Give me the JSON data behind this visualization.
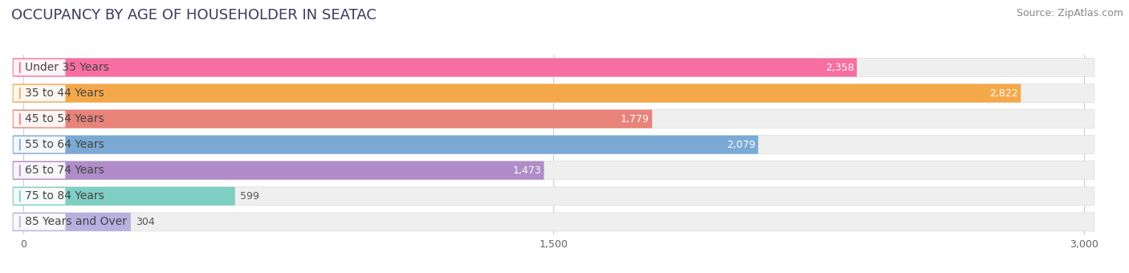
{
  "title": "OCCUPANCY BY AGE OF HOUSEHOLDER IN SEATAC",
  "source": "Source: ZipAtlas.com",
  "categories": [
    "Under 35 Years",
    "35 to 44 Years",
    "45 to 54 Years",
    "55 to 64 Years",
    "65 to 74 Years",
    "75 to 84 Years",
    "85 Years and Over"
  ],
  "values": [
    2358,
    2822,
    1779,
    2079,
    1473,
    599,
    304
  ],
  "bar_colors": [
    "#F76FA0",
    "#F5A84A",
    "#E8837A",
    "#7AAAD4",
    "#B08CC8",
    "#7ECEC4",
    "#B8B0E0"
  ],
  "bar_bg_color": "#efefef",
  "xlim_max": 3000,
  "xticks": [
    0,
    1500,
    3000
  ],
  "xtick_labels": [
    "0",
    "1,500",
    "3,000"
  ],
  "background_color": "#ffffff",
  "title_fontsize": 13,
  "source_fontsize": 9,
  "label_fontsize": 10,
  "value_fontsize": 9,
  "title_color": "#3a3a5a",
  "source_color": "#888888",
  "label_color": "#444444",
  "value_inside_color": "#ffffff",
  "value_outside_color": "#555555"
}
